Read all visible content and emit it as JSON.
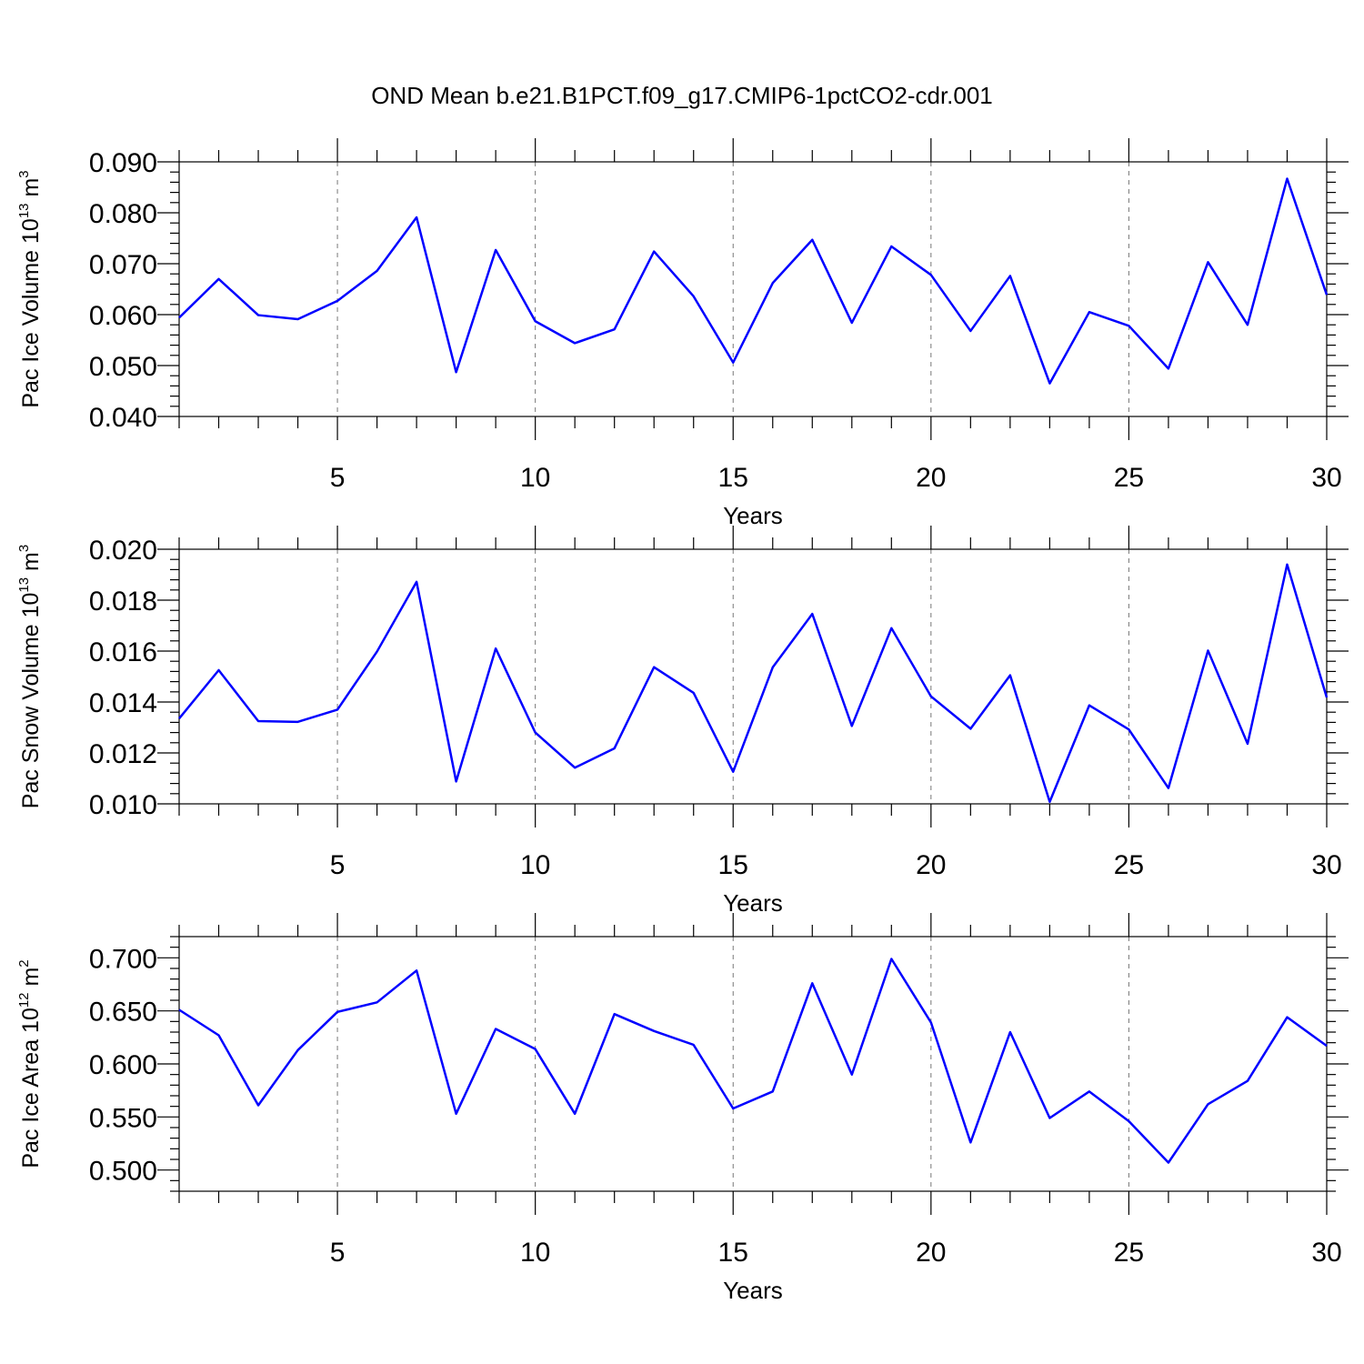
{
  "title": "OND Mean b.e21.B1PCT.f09_g17.CMIP6-1pctCO2-cdr.001",
  "colors": {
    "line": "#0000ff",
    "axis": "#000000",
    "grid": "#777777"
  },
  "chart_data": [
    {
      "type": "line",
      "title": "",
      "xlabel": "Years",
      "ylabel": {
        "text": "Pac Ice Volume 10",
        "exponent": "13",
        "unit": "m",
        "unit_exponent": "3"
      },
      "x": [
        1,
        2,
        3,
        4,
        5,
        6,
        7,
        8,
        9,
        10,
        11,
        12,
        13,
        14,
        15,
        16,
        17,
        18,
        19,
        20,
        21,
        22,
        23,
        24,
        25,
        26,
        27,
        28,
        29,
        30
      ],
      "series": [
        {
          "name": "Pac Ice Volume",
          "values": [
            0.0594,
            0.067,
            0.0599,
            0.0591,
            0.0627,
            0.0686,
            0.0791,
            0.0487,
            0.0727,
            0.0587,
            0.0544,
            0.0571,
            0.0724,
            0.0636,
            0.0506,
            0.0662,
            0.0747,
            0.0584,
            0.0734,
            0.0678,
            0.0568,
            0.0676,
            0.0465,
            0.0605,
            0.0578,
            0.0494,
            0.0703,
            0.058,
            0.0867,
            0.0639
          ]
        }
      ],
      "xlim": [
        1,
        30
      ],
      "ylim": [
        0.04,
        0.09
      ],
      "x_ticks": [
        5,
        10,
        15,
        20,
        25,
        30
      ],
      "x_minor_step": 1,
      "y_ticks": [
        0.04,
        0.05,
        0.06,
        0.07,
        0.08,
        0.09
      ],
      "y_tick_labels": [
        "0.040",
        "0.050",
        "0.060",
        "0.070",
        "0.080",
        "0.090"
      ],
      "y_minor_step": 0.002,
      "grid": "vertical dashed at major x ticks"
    },
    {
      "type": "line",
      "title": "",
      "xlabel": "Years",
      "ylabel": {
        "text": "Pac Snow Volume 10",
        "exponent": "13",
        "unit": "m",
        "unit_exponent": "3"
      },
      "x": [
        1,
        2,
        3,
        4,
        5,
        6,
        7,
        8,
        9,
        10,
        11,
        12,
        13,
        14,
        15,
        16,
        17,
        18,
        19,
        20,
        21,
        22,
        23,
        24,
        25,
        26,
        27,
        28,
        29,
        30
      ],
      "series": [
        {
          "name": "Pac Snow Volume",
          "values": [
            0.01335,
            0.01525,
            0.01325,
            0.01322,
            0.0137,
            0.01598,
            0.01872,
            0.01088,
            0.0161,
            0.0128,
            0.01142,
            0.01218,
            0.01537,
            0.01436,
            0.01126,
            0.01536,
            0.01746,
            0.01306,
            0.0169,
            0.01422,
            0.01295,
            0.01505,
            0.01008,
            0.01387,
            0.01292,
            0.01062,
            0.01602,
            0.01236,
            0.0194,
            0.01418
          ]
        }
      ],
      "xlim": [
        1,
        30
      ],
      "ylim": [
        0.01,
        0.02
      ],
      "x_ticks": [
        5,
        10,
        15,
        20,
        25,
        30
      ],
      "x_minor_step": 1,
      "y_ticks": [
        0.01,
        0.012,
        0.014,
        0.016,
        0.018,
        0.02
      ],
      "y_tick_labels": [
        "0.010",
        "0.012",
        "0.014",
        "0.016",
        "0.018",
        "0.020"
      ],
      "y_minor_step": 0.0004,
      "grid": "vertical dashed at major x ticks"
    },
    {
      "type": "line",
      "title": "",
      "xlabel": "Years",
      "ylabel": {
        "text": "Pac Ice Area 10",
        "exponent": "12",
        "unit": "m",
        "unit_exponent": "2"
      },
      "x": [
        1,
        2,
        3,
        4,
        5,
        6,
        7,
        8,
        9,
        10,
        11,
        12,
        13,
        14,
        15,
        16,
        17,
        18,
        19,
        20,
        21,
        22,
        23,
        24,
        25,
        26,
        27,
        28,
        29,
        30
      ],
      "series": [
        {
          "name": "Pac Ice Area",
          "values": [
            0.651,
            0.627,
            0.561,
            0.613,
            0.649,
            0.658,
            0.688,
            0.553,
            0.633,
            0.614,
            0.553,
            0.647,
            0.631,
            0.618,
            0.558,
            0.574,
            0.676,
            0.59,
            0.699,
            0.639,
            0.526,
            0.63,
            0.549,
            0.574,
            0.546,
            0.507,
            0.562,
            0.584,
            0.644,
            0.617
          ]
        }
      ],
      "xlim": [
        1,
        30
      ],
      "ylim": [
        0.48,
        0.72
      ],
      "x_ticks": [
        5,
        10,
        15,
        20,
        25,
        30
      ],
      "x_minor_step": 1,
      "y_ticks": [
        0.5,
        0.55,
        0.6,
        0.65,
        0.7
      ],
      "y_tick_labels": [
        "0.500",
        "0.550",
        "0.600",
        "0.650",
        "0.700"
      ],
      "y_minor_step": 0.01,
      "grid": "vertical dashed at major x ticks"
    }
  ]
}
